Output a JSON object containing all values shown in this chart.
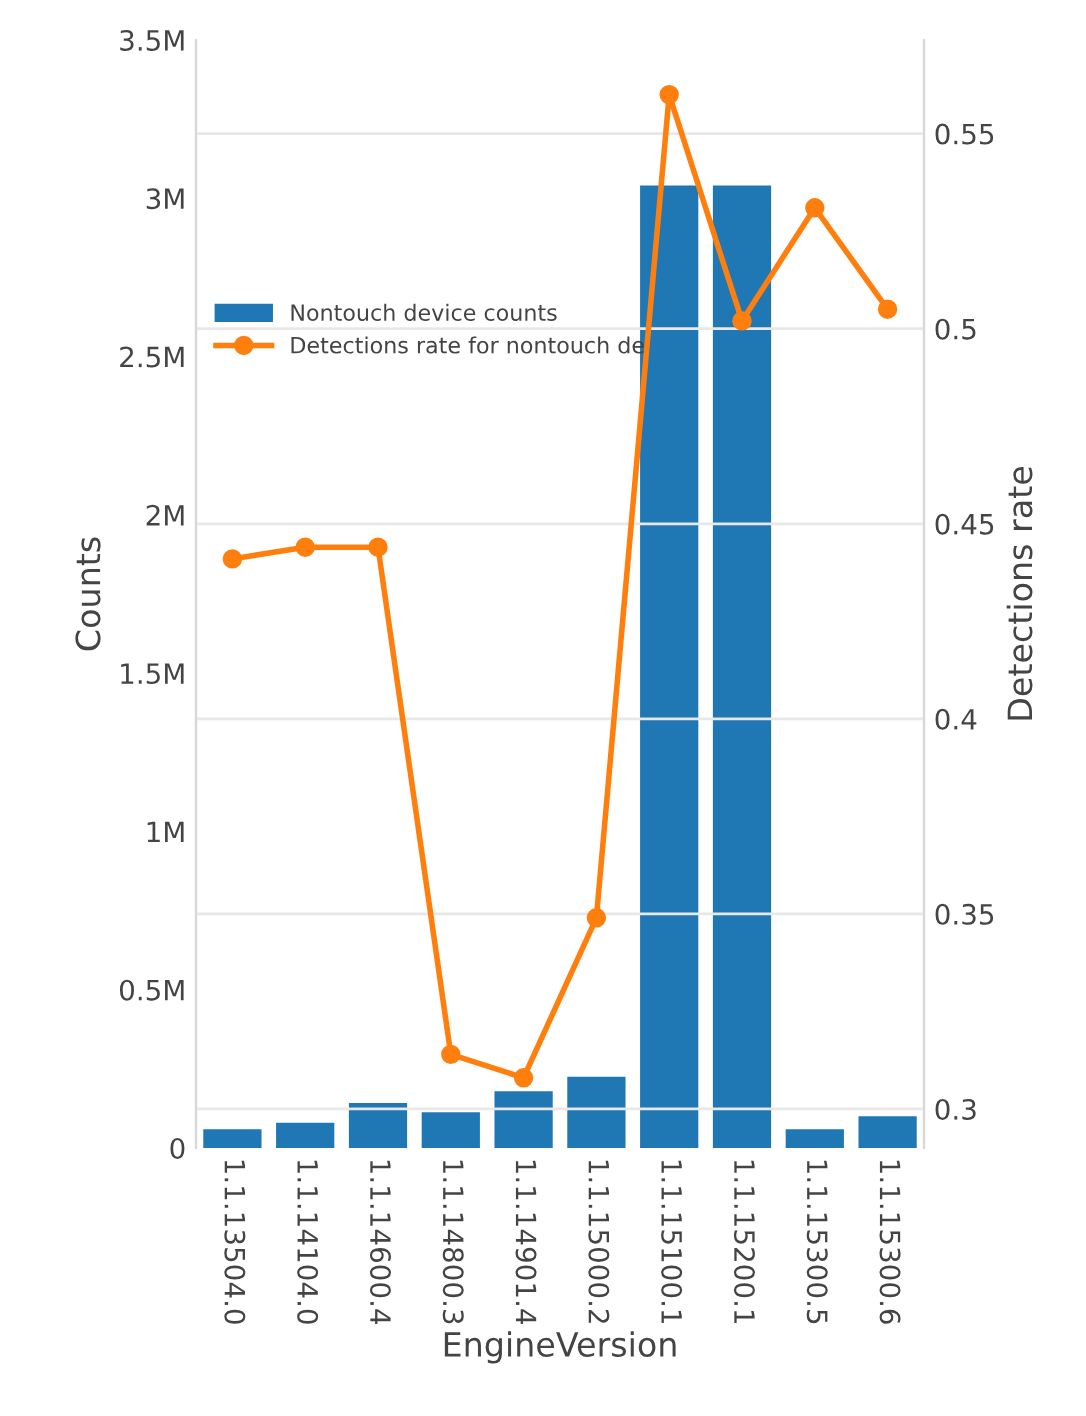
{
  "chart_data": {
    "type": "bar",
    "categories": [
      "1.1.13504.0",
      "1.1.14104.0",
      "1.1.14600.4",
      "1.1.14800.3",
      "1.1.14901.4",
      "1.1.15000.2",
      "1.1.15100.1",
      "1.1.15200.1",
      "1.1.15300.5",
      "1.1.15300.6"
    ],
    "series": [
      {
        "name": "Nontouch device counts",
        "color": "#1f77b4",
        "values": [
          59000,
          80000,
          142000,
          113000,
          179000,
          225000,
          3040000,
          3040000,
          59000,
          100000
        ]
      },
      {
        "name": "Detections rate for nontouch de",
        "type": "line",
        "axis": "y2",
        "color": "#ff7f0e",
        "marker": "circle",
        "values": [
          0.441,
          0.444,
          0.444,
          0.314,
          0.308,
          0.349,
          0.56,
          0.502,
          0.531,
          0.505
        ]
      }
    ],
    "xlabel": "EngineVersion",
    "ylabel": "Counts",
    "y2label": "Detections rate",
    "ylim": [
      0,
      3500000
    ],
    "yticks": [
      {
        "value": 0,
        "label": "0"
      },
      {
        "value": 500000,
        "label": "0.5M"
      },
      {
        "value": 1000000,
        "label": "1M"
      },
      {
        "value": 1500000,
        "label": "1.5M"
      },
      {
        "value": 2000000,
        "label": "2M"
      },
      {
        "value": 2500000,
        "label": "2.5M"
      },
      {
        "value": 3000000,
        "label": "3M"
      },
      {
        "value": 3500000,
        "label": "3.5M"
      }
    ],
    "y2lim": [
      0.29,
      0.574
    ],
    "y2ticks": [
      0.3,
      0.35,
      0.4,
      0.45,
      0.5,
      0.55
    ],
    "grid": "y2",
    "legend": "top left"
  }
}
